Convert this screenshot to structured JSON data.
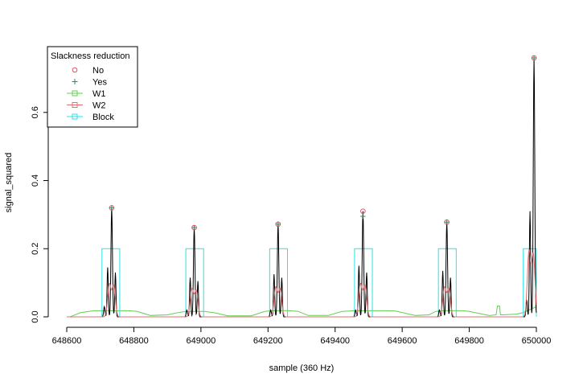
{
  "chart_data": {
    "type": "line",
    "title": "",
    "xlabel": "sample (360 Hz)",
    "ylabel": "signal_squared",
    "xlim": [
      648600,
      650000
    ],
    "ylim": [
      0,
      0.76
    ],
    "x_ticks": [
      648600,
      648800,
      649000,
      649200,
      649400,
      649600,
      649800,
      650000
    ],
    "y_ticks": [
      0.0,
      0.2,
      0.4,
      0.6
    ],
    "x_tick_labels": [
      "648600",
      "648800",
      "649000",
      "649200",
      "649400",
      "649600",
      "649800",
      "650000"
    ],
    "y_tick_labels": [
      "0.0",
      "0.2",
      "0.4",
      "0.6"
    ],
    "grid": false,
    "legend": {
      "title": "Slackness reduction",
      "placement": "top-left",
      "entries": [
        {
          "label": "No",
          "color": "#DF536B",
          "marker": "circle",
          "line": false
        },
        {
          "label": "Yes",
          "color": "#2E8B57",
          "marker": "plus",
          "line": false
        },
        {
          "label": "W1",
          "color": "#61D04F",
          "marker": "square",
          "line": true
        },
        {
          "label": "W2",
          "color": "#E07070",
          "marker": "square",
          "line": true
        },
        {
          "label": "Block",
          "color": "#28E2E5",
          "marker": "square",
          "line": true
        }
      ]
    },
    "signal": {
      "name": "signal_squared",
      "color": "#000000",
      "beats": [
        {
          "center": 648734,
          "peak": 0.32,
          "left": 0.145,
          "right": 0.13,
          "left2": 0.03
        },
        {
          "center": 648980,
          "peak": 0.262,
          "left": 0.115,
          "right": 0.105,
          "left2": 0.02
        },
        {
          "center": 649230,
          "peak": 0.272,
          "left": 0.125,
          "right": 0.115,
          "left2": 0.02
        },
        {
          "center": 649483,
          "peak": 0.31,
          "left": 0.15,
          "right": 0.13,
          "left2": 0.02
        },
        {
          "center": 649733,
          "peak": 0.278,
          "left": 0.135,
          "right": 0.115,
          "left2": 0.02
        },
        {
          "center": 649993,
          "peak": 0.76,
          "left": 0.31,
          "right": 0.085,
          "left2": 0.05
        }
      ]
    },
    "peaks_no": {
      "name": "No",
      "color": "#DF536B",
      "x": [
        648734,
        648980,
        649230,
        649483,
        649733,
        649993
      ],
      "y": [
        0.32,
        0.262,
        0.272,
        0.31,
        0.278,
        0.76
      ]
    },
    "peaks_yes": {
      "name": "Yes",
      "color": "#2E8B57",
      "x": [
        648734,
        648980,
        649230,
        649483,
        649733,
        649993
      ],
      "y": [
        0.32,
        0.262,
        0.272,
        0.295,
        0.278,
        0.76
      ]
    },
    "w1": {
      "name": "W1",
      "color": "#61D04F",
      "baseline": 0.016,
      "x": [
        648600,
        648610,
        648620,
        648640,
        648680,
        648700,
        648720,
        648760,
        648785,
        648810,
        648850,
        648900,
        648940,
        648960,
        648990,
        649010,
        649040,
        649080,
        649150,
        649190,
        649210,
        649250,
        649265,
        649290,
        649320,
        649380,
        649420,
        649460,
        649500,
        649520,
        649545,
        649580,
        649640,
        649680,
        649700,
        649720,
        649760,
        649780,
        649800,
        649860,
        649880,
        649884,
        649890,
        649893,
        649900,
        649940,
        649960,
        650000
      ],
      "y": [
        0.0,
        0.0,
        0.004,
        0.012,
        0.018,
        0.018,
        0.018,
        0.018,
        0.018,
        0.016,
        0.004,
        0.006,
        0.014,
        0.016,
        0.016,
        0.016,
        0.012,
        0.003,
        0.003,
        0.016,
        0.018,
        0.018,
        0.018,
        0.016,
        0.004,
        0.004,
        0.016,
        0.018,
        0.018,
        0.018,
        0.018,
        0.017,
        0.004,
        0.006,
        0.016,
        0.018,
        0.018,
        0.018,
        0.016,
        0.004,
        0.006,
        0.032,
        0.032,
        0.006,
        0.006,
        0.008,
        0.012,
        0.03
      ]
    },
    "w2": {
      "name": "W2",
      "color": "#E07070",
      "beats": [
        {
          "center": 648734,
          "height": 0.1
        },
        {
          "center": 648980,
          "height": 0.085
        },
        {
          "center": 649230,
          "height": 0.09
        },
        {
          "center": 649483,
          "height": 0.1
        },
        {
          "center": 649733,
          "height": 0.09
        },
        {
          "center": 649985,
          "height": 0.2
        }
      ]
    },
    "block": {
      "name": "Block",
      "color": "#28E2E5",
      "height": 0.2,
      "intervals": [
        [
          648705,
          648758
        ],
        [
          648955,
          649008
        ],
        [
          649205,
          649258
        ],
        [
          649458,
          649511
        ],
        [
          649708,
          649761
        ],
        [
          649961,
          650000
        ]
      ]
    }
  }
}
